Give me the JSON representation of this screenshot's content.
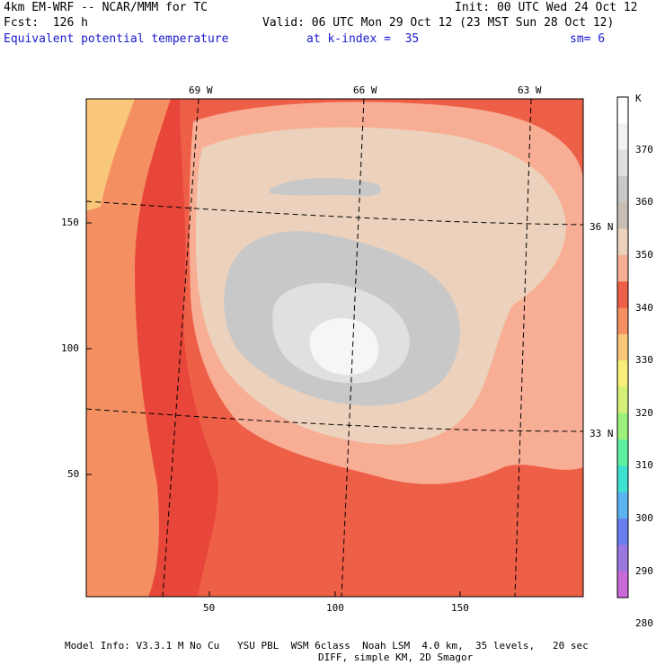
{
  "header": {
    "model": "4km EM-WRF -- NCAR/MMM for TC",
    "init": "Init: 00 UTC Wed 24 Oct 12",
    "fcst": "Fcst:  126 h",
    "valid": "Valid: 06 UTC Mon 29 Oct 12 (23 MST Sun 28 Oct 12)",
    "field": "Equivalent potential temperature",
    "kindex": "at k-index =  35",
    "smooth": "sm= 6"
  },
  "map": {
    "lon_labels": [
      "69 W",
      "66 W",
      "63 W"
    ],
    "lat_labels": [
      "36 N",
      "33 N"
    ],
    "y_ticks": [
      "150",
      "100",
      "50"
    ],
    "x_ticks": [
      "50",
      "100",
      "150"
    ]
  },
  "colorbar": {
    "unit": "K",
    "labels": [
      "370",
      "360",
      "350",
      "340",
      "330",
      "320",
      "310",
      "300",
      "290",
      "280"
    ],
    "colors": [
      "#ffffff",
      "#f2f2f2",
      "#e0e0e0",
      "#c8c8c8",
      "#c8beb3",
      "#ecd2bc",
      "#f7ae94",
      "#ee5f48",
      "#f48f62",
      "#f8c77a",
      "#f8ef78",
      "#d4f078",
      "#9ef07c",
      "#5cf0a0",
      "#3ee0d0",
      "#5ab4f0",
      "#6a7ef0",
      "#9a78e0",
      "#c86ad8"
    ]
  },
  "footer": {
    "line1": "Model Info: V3.3.1 M No Cu   YSU PBL  WSM 6class  Noah LSM  4.0 km,  35 levels,   20 sec",
    "line2": "DIFF, simple KM, 2D Smagor"
  },
  "colors": {
    "ring_outer": "#e8463a",
    "ring_red": "#ee5f48",
    "ring_salmon": "#f7ae94",
    "ring_tan": "#ecd2bc",
    "ring_gray": "#c8c8c8",
    "ring_light": "#e0e0e0",
    "core": "#f6f6f6",
    "corner_orange": "#f48f62",
    "corner_yellow": "#f8c77a"
  }
}
